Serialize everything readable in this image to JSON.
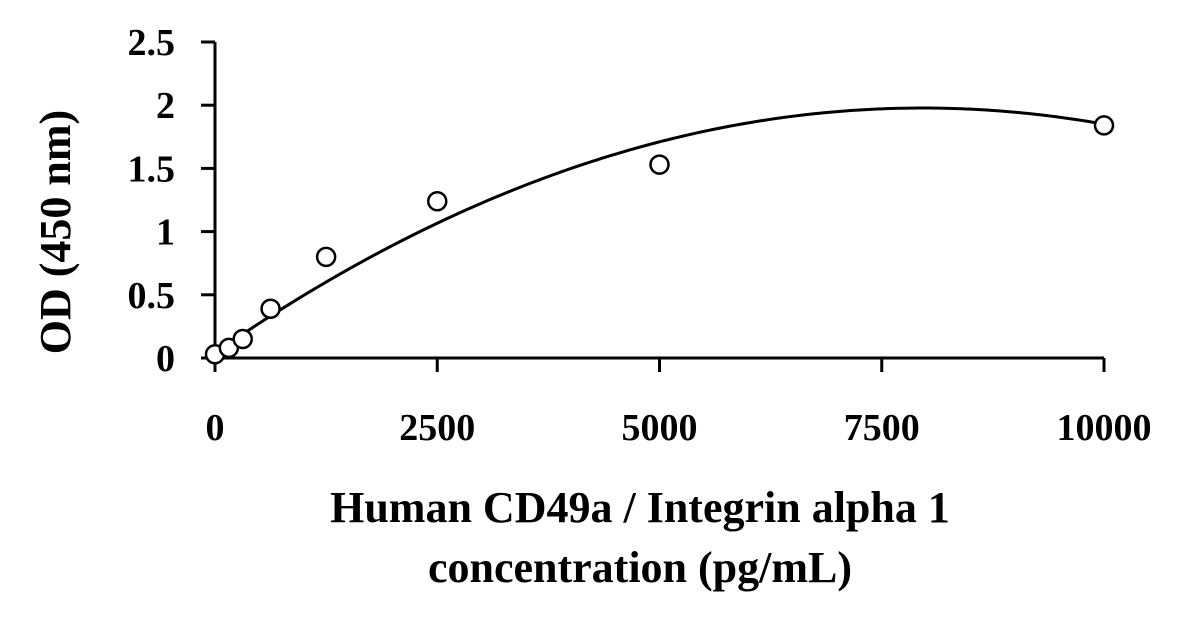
{
  "chart_data": {
    "type": "scatter",
    "title": "",
    "xlabel_lines": [
      "Human CD49a / Integrin alpha 1",
      "concentration (pg/mL)"
    ],
    "ylabel": "OD (450 nm)",
    "xlim": [
      0,
      10000
    ],
    "ylim": [
      0,
      2.5
    ],
    "x_ticks": [
      0,
      2500,
      5000,
      7500,
      10000
    ],
    "y_ticks": [
      0,
      0.5,
      1,
      1.5,
      2,
      2.5
    ],
    "x_tick_labels": [
      "0",
      "2500",
      "5000",
      "7500",
      "10000"
    ],
    "y_tick_labels": [
      "0",
      "0.5",
      "1",
      "1.5",
      "2",
      "2.5"
    ],
    "grid": false,
    "legend": "none",
    "series": [
      {
        "x": [
          0,
          156,
          312,
          625,
          1250,
          2500,
          5000,
          10000
        ],
        "y": [
          0.03,
          0.08,
          0.15,
          0.39,
          0.8,
          1.24,
          1.53,
          1.84
        ],
        "marker": "open-circle"
      }
    ],
    "trendline": {
      "kind": "polynomial",
      "order": 2,
      "coefficients": [
        0.04,
        0.000487,
        -3.06e-08
      ]
    },
    "colors": {
      "axis": "#000000",
      "marker_edge": "#000000",
      "marker_fill": "#ffffff",
      "line": "#000000"
    }
  }
}
